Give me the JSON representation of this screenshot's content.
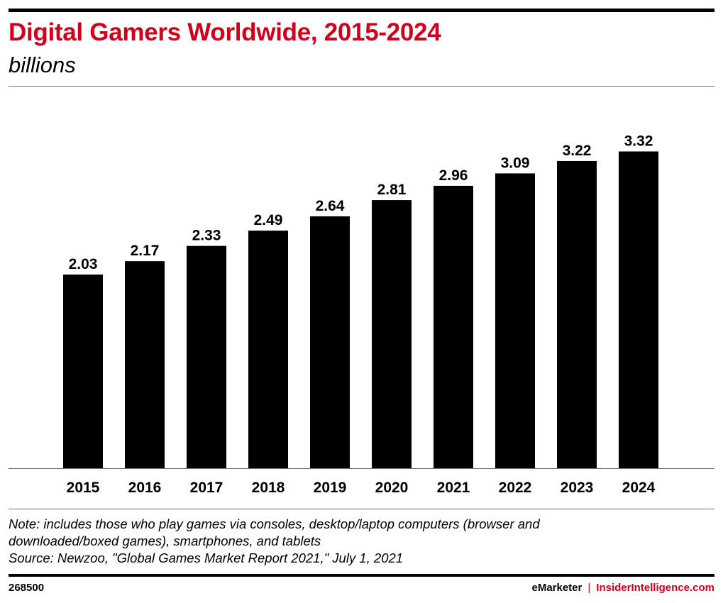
{
  "header": {
    "title": "Digital Gamers Worldwide, 2015-2024",
    "subtitle": "billions"
  },
  "chart_data": {
    "type": "bar",
    "title": "Digital Gamers Worldwide, 2015-2024",
    "subtitle": "billions",
    "categories": [
      "2015",
      "2016",
      "2017",
      "2018",
      "2019",
      "2020",
      "2021",
      "2022",
      "2023",
      "2024"
    ],
    "values": [
      2.03,
      2.17,
      2.33,
      2.49,
      2.64,
      2.81,
      2.96,
      3.09,
      3.22,
      3.32
    ],
    "value_labels": [
      "2.03",
      "2.17",
      "2.33",
      "2.49",
      "2.64",
      "2.81",
      "2.96",
      "3.09",
      "3.22",
      "3.32"
    ],
    "ylim": [
      0,
      4.03
    ],
    "grid": false,
    "bar_color": "#000000"
  },
  "footer": {
    "note_line1": "Note: includes those who play games via consoles, desktop/laptop computers (browser and",
    "note_line2": "downloaded/boxed games), smartphones, and tablets",
    "source": "Source: Newzoo, \"Global Games Market Report 2021,\" July 1, 2021",
    "chart_id": "268500",
    "brand_emarketer": "eMarketer",
    "brand_separator": "|",
    "brand_insider": "InsiderIntelligence.com"
  },
  "colors": {
    "title": "#d0021b",
    "bars": "#000000",
    "rule": "#6f6f6f"
  }
}
